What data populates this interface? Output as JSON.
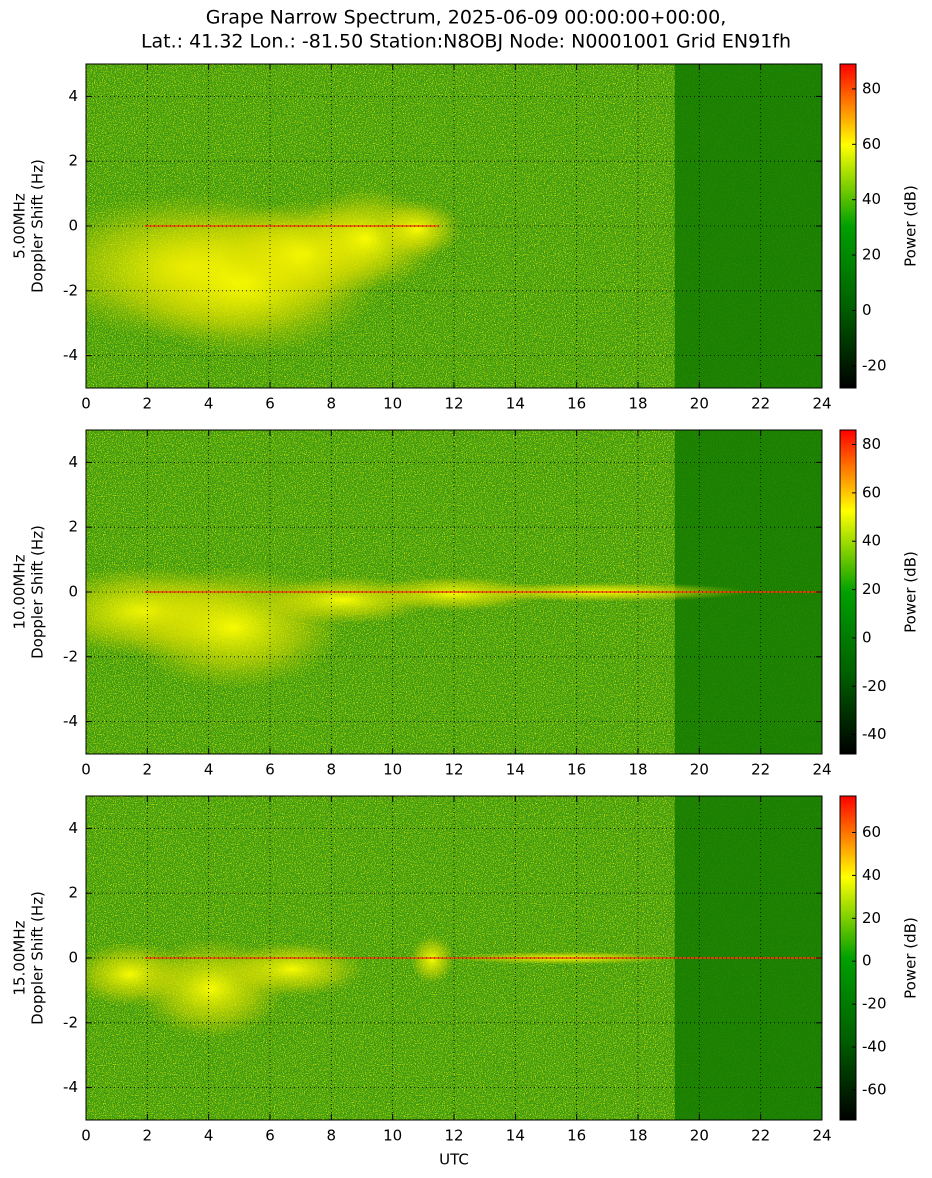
{
  "title": [
    "Grape Narrow Spectrum, 2025-06-09 00:00:00+00:00,",
    "Lat.: 41.32 Lon.: -81.50 Station:N8OBJ Node: N0001001 Grid EN91fh"
  ],
  "colormap": [
    "#000000",
    "#006000",
    "#00a000",
    "#ffff00",
    "#ff0000"
  ],
  "chart_data": [
    {
      "type": "spectrogram",
      "ylabel": [
        "5.00MHz",
        "Doppler Shift (Hz)"
      ],
      "xlim": [
        0,
        24
      ],
      "xticks": [
        0,
        2,
        4,
        6,
        8,
        10,
        12,
        14,
        16,
        18,
        20,
        22,
        24
      ],
      "ylim": [
        -5,
        5
      ],
      "yticks": [
        -4,
        -2,
        0,
        2,
        4
      ],
      "grid": true,
      "clim": [
        -28,
        89
      ],
      "cticks": [
        -20,
        0,
        20,
        40,
        60,
        80
      ],
      "clabel": "Power (dB)"
    },
    {
      "type": "spectrogram",
      "ylabel": [
        "10.00MHz",
        "Doppler Shift (Hz)"
      ],
      "xlim": [
        0,
        24
      ],
      "xticks": [
        0,
        2,
        4,
        6,
        8,
        10,
        12,
        14,
        16,
        18,
        20,
        22,
        24
      ],
      "ylim": [
        -5,
        5
      ],
      "yticks": [
        -4,
        -2,
        0,
        2,
        4
      ],
      "grid": true,
      "clim": [
        -48,
        86
      ],
      "cticks": [
        -40,
        -20,
        0,
        20,
        40,
        60,
        80
      ],
      "clabel": "Power (dB)"
    },
    {
      "type": "spectrogram",
      "ylabel": [
        "15.00MHz",
        "Doppler Shift (Hz)"
      ],
      "xlabel": "UTC",
      "xlim": [
        0,
        24
      ],
      "xticks": [
        0,
        2,
        4,
        6,
        8,
        10,
        12,
        14,
        16,
        18,
        20,
        22,
        24
      ],
      "ylim": [
        -5,
        5
      ],
      "yticks": [
        -4,
        -2,
        0,
        2,
        4
      ],
      "grid": true,
      "clim": [
        -74,
        77
      ],
      "cticks": [
        -60,
        -40,
        -20,
        0,
        20,
        40,
        60
      ],
      "clabel": "Power (dB)"
    }
  ]
}
